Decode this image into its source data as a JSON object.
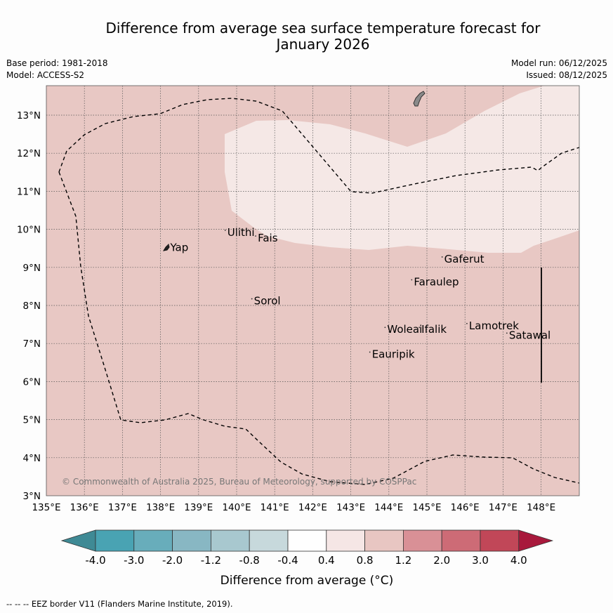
{
  "title_line1": "Difference from average sea surface temperature forecast for",
  "title_line2": "January 2026",
  "base_period": "Base period: 1981-2018",
  "model": "Model: ACCESS-S2",
  "model_run": "Model run: 06/12/2025",
  "issued": "Issued: 08/12/2025",
  "lon_labels": [
    "135°E",
    "136°E",
    "137°E",
    "138°E",
    "139°E",
    "140°E",
    "141°E",
    "142°E",
    "143°E",
    "144°E",
    "145°E",
    "146°E",
    "147°E",
    "148°E"
  ],
  "lat_labels": [
    "3°N",
    "4°N",
    "5°N",
    "6°N",
    "7°N",
    "8°N",
    "9°N",
    "10°N",
    "11°N",
    "12°N",
    "13°N"
  ],
  "places": [
    {
      "name": "Yap",
      "lon": 138.2,
      "lat": 9.5
    },
    {
      "name": "Ulithi",
      "lon": 139.7,
      "lat": 9.9
    },
    {
      "name": "Fais",
      "lon": 140.5,
      "lat": 9.75
    },
    {
      "name": "Sorol",
      "lon": 140.4,
      "lat": 8.1
    },
    {
      "name": "Gaferut",
      "lon": 145.4,
      "lat": 9.2
    },
    {
      "name": "Faraulep",
      "lon": 144.6,
      "lat": 8.6
    },
    {
      "name": "Lamotrek",
      "lon": 146.05,
      "lat": 7.45
    },
    {
      "name": "Satawal",
      "lon": 147.1,
      "lat": 7.2
    },
    {
      "name": "Woleai",
      "lon": 143.9,
      "lat": 7.35
    },
    {
      "name": "Ifalik",
      "lon": 144.8,
      "lat": 7.35
    },
    {
      "name": "Eauripik",
      "lon": 143.5,
      "lat": 6.7
    }
  ],
  "copyright": "© Commonwealth of Australia 2025, Bureau of Meteorology, supported by COSPPac",
  "legend": {
    "labels": [
      "-4.0",
      "-3.0",
      "-2.0",
      "-1.2",
      "-0.8",
      "-0.4",
      "0.4",
      "0.8",
      "1.2",
      "2.0",
      "3.0",
      "4.0"
    ],
    "colors": [
      "#3f8a95",
      "#49a3b3",
      "#68adbb",
      "#88b7c3",
      "#a8c8cf",
      "#c7d9dc",
      "#fefefe",
      "#f5e6e5",
      "#e8c6c2",
      "#d99096",
      "#cd6b76",
      "#c14758",
      "#a8193c"
    ],
    "title": "Difference from average (°C)"
  },
  "footnote": "--  --  -- EEZ border V11 (Flanders Marine Institute, 2019).",
  "fields": {
    "background_class": "0.8 to 1.2",
    "warm_patch_class": "0.4 to 0.8",
    "background_color": "#e8c8c4",
    "patch_color": "#f5e8e6"
  }
}
